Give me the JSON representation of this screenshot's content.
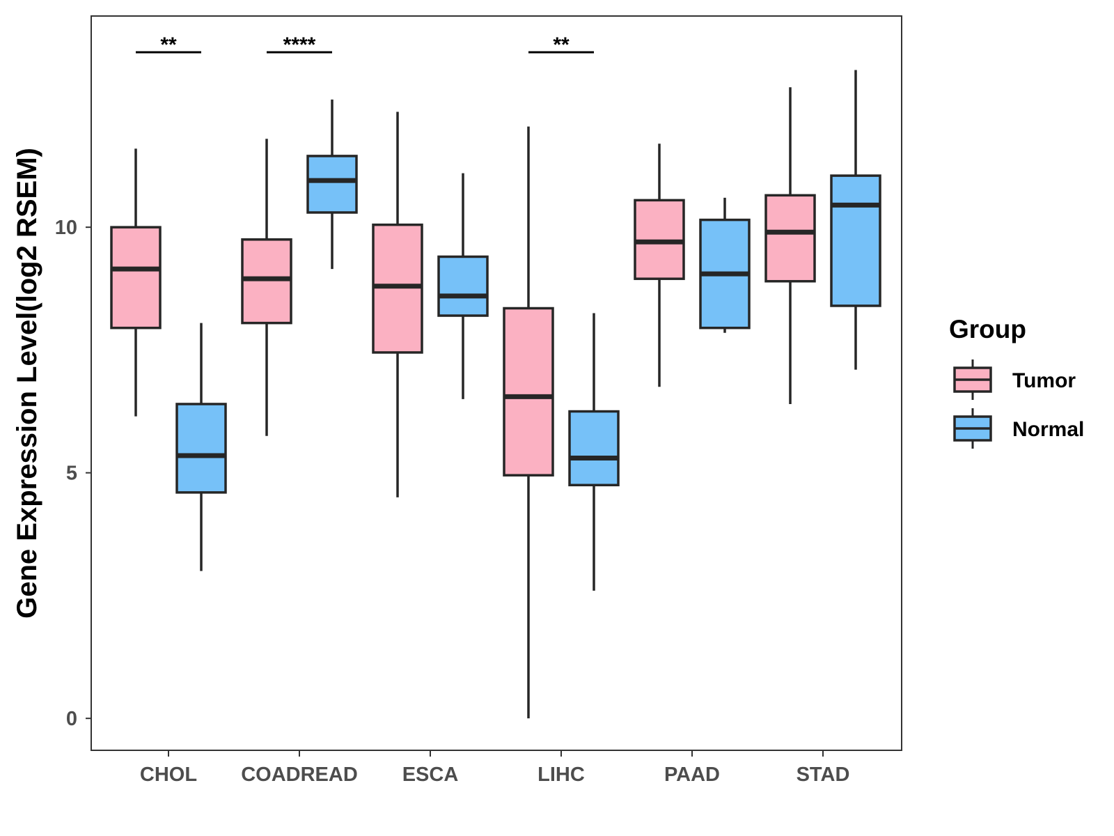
{
  "chart_data": {
    "type": "box",
    "title": "",
    "xlabel": "",
    "ylabel": "Gene Expression Level(log2 RSEM)",
    "ylim": [
      -0.65,
      14.3
    ],
    "yticks": [
      0,
      5,
      10
    ],
    "categories": [
      "CHOL",
      "COADREAD",
      "ESCA",
      "LIHC",
      "PAAD",
      "STAD"
    ],
    "legend": {
      "title": "Group",
      "placement": "right",
      "items": [
        {
          "label": "Tumor",
          "color": "#fbb1c2"
        },
        {
          "label": "Normal",
          "color": "#76c1f8"
        }
      ]
    },
    "series": [
      {
        "name": "Tumor",
        "color": "#fbb1c2",
        "boxes": [
          {
            "category": "CHOL",
            "whisker_low": 6.15,
            "q1": 7.95,
            "median": 9.15,
            "q3": 10.0,
            "whisker_high": 11.6
          },
          {
            "category": "COADREAD",
            "whisker_low": 5.75,
            "q1": 8.05,
            "median": 8.95,
            "q3": 9.75,
            "whisker_high": 11.8
          },
          {
            "category": "ESCA",
            "whisker_low": 4.5,
            "q1": 7.45,
            "median": 8.8,
            "q3": 10.05,
            "whisker_high": 12.35
          },
          {
            "category": "LIHC",
            "whisker_low": 0.0,
            "q1": 4.95,
            "median": 6.55,
            "q3": 8.35,
            "whisker_high": 12.05
          },
          {
            "category": "PAAD",
            "whisker_low": 6.75,
            "q1": 8.95,
            "median": 9.7,
            "q3": 10.55,
            "whisker_high": 11.7
          },
          {
            "category": "STAD",
            "whisker_low": 6.4,
            "q1": 8.9,
            "median": 9.9,
            "q3": 10.65,
            "whisker_high": 12.85
          }
        ]
      },
      {
        "name": "Normal",
        "color": "#76c1f8",
        "boxes": [
          {
            "category": "CHOL",
            "whisker_low": 3.0,
            "q1": 4.6,
            "median": 5.35,
            "q3": 6.4,
            "whisker_high": 8.05
          },
          {
            "category": "COADREAD",
            "whisker_low": 9.15,
            "q1": 10.3,
            "median": 10.95,
            "q3": 11.45,
            "whisker_high": 12.6
          },
          {
            "category": "ESCA",
            "whisker_low": 6.5,
            "q1": 8.2,
            "median": 8.6,
            "q3": 9.4,
            "whisker_high": 11.1
          },
          {
            "category": "LIHC",
            "whisker_low": 2.6,
            "q1": 4.75,
            "median": 5.3,
            "q3": 6.25,
            "whisker_high": 8.25
          },
          {
            "category": "PAAD",
            "whisker_low": 7.85,
            "q1": 7.95,
            "median": 9.05,
            "q3": 10.15,
            "whisker_high": 10.6
          },
          {
            "category": "STAD",
            "whisker_low": 7.1,
            "q1": 8.4,
            "median": 10.45,
            "q3": 11.05,
            "whisker_high": 13.2
          }
        ]
      }
    ],
    "significance": [
      {
        "category": "CHOL",
        "label": "**"
      },
      {
        "category": "COADREAD",
        "label": "****"
      },
      {
        "category": "LIHC",
        "label": "**"
      }
    ]
  }
}
